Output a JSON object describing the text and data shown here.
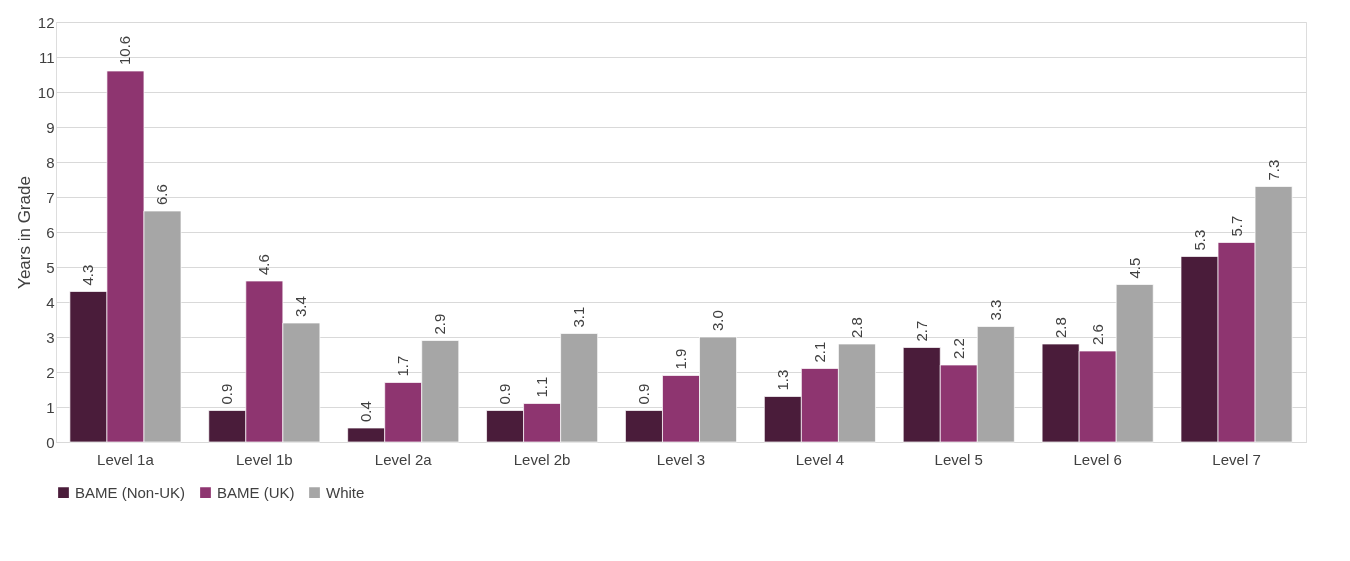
{
  "chart_data": {
    "type": "bar",
    "ylabel": "Years in Grade",
    "categories": [
      "Level 1a",
      "Level 1b",
      "Level 2a",
      "Level 2b",
      "Level 3",
      "Level 4",
      "Level 5",
      "Level 6",
      "Level 7"
    ],
    "series": [
      {
        "name": "BAME (Non-UK)",
        "color": "#4a1c3a",
        "values": [
          4.3,
          0.9,
          0.4,
          0.9,
          0.9,
          1.3,
          2.7,
          2.8,
          5.3
        ],
        "value_labels": [
          "4.3",
          "0.9",
          "0.4",
          "0.9",
          "0.9",
          "1.3",
          "2.7",
          "2.8",
          "5.3"
        ]
      },
      {
        "name": "BAME (UK)",
        "color": "#8e3570",
        "values": [
          10.6,
          4.6,
          1.7,
          1.1,
          1.9,
          2.1,
          2.2,
          2.6,
          5.7
        ],
        "value_labels": [
          "10.6",
          "4.6",
          "1.7",
          "1.1",
          "1.9",
          "2.1",
          "2.2",
          "2.6",
          "5.7"
        ]
      },
      {
        "name": "White",
        "color": "#a6a6a6",
        "values": [
          6.6,
          3.4,
          2.9,
          3.1,
          3.0,
          2.8,
          3.3,
          4.5,
          7.3
        ],
        "value_labels": [
          "6.6",
          "3.4",
          "2.9",
          "3.1",
          "3.0",
          "2.8",
          "3.3",
          "4.5",
          "7.3"
        ]
      }
    ],
    "ylim": [
      0,
      12
    ],
    "yticks": [
      0,
      1,
      2,
      3,
      4,
      5,
      6,
      7,
      8,
      9,
      10,
      11,
      12
    ],
    "grid": "y",
    "legend": "bottom"
  }
}
